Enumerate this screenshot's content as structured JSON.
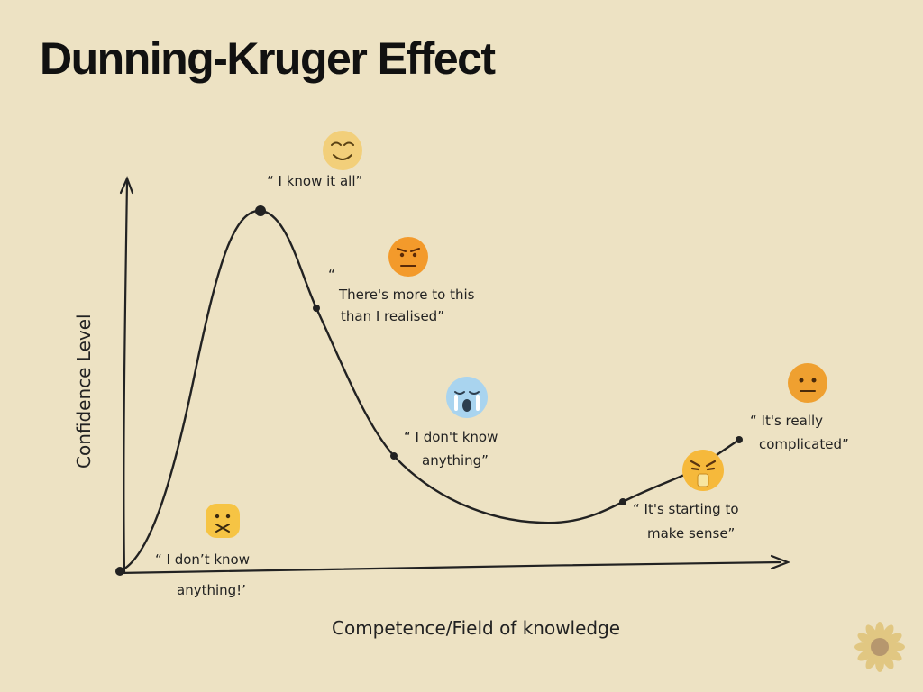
{
  "title": "Dunning-Kruger Effect",
  "y_axis_label": "Confidence Level",
  "x_axis_label": "Competence/Field of knowledge",
  "stages": [
    {
      "quote_lines": [
        "“ I don’t know",
        "anything!’"
      ],
      "emoji": "confounded-face-icon"
    },
    {
      "quote_lines": [
        "“ I know it all”"
      ],
      "emoji": "smiling-face-icon"
    },
    {
      "quote_lines": [
        "“",
        "There's more to this",
        "than I realised”"
      ],
      "emoji": "frowning-face-icon"
    },
    {
      "quote_lines": [
        "“ I don't know",
        "anything”"
      ],
      "emoji": "crying-face-icon"
    },
    {
      "quote_lines": [
        "“ It's starting to",
        "make sense”"
      ],
      "emoji": "angry-face-icon"
    },
    {
      "quote_lines": [
        "“ It's really",
        "complicated”"
      ],
      "emoji": "neutral-face-icon"
    }
  ],
  "colors": {
    "background": "#ede2c3",
    "ink": "#222222",
    "emoji_yellow": "#f6c444",
    "emoji_orange": "#f39a2b",
    "emoji_blue": "#a9d4ef"
  }
}
